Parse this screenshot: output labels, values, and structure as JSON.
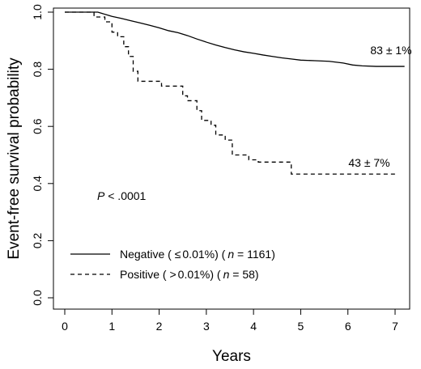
{
  "chart_data": {
    "type": "line",
    "title": "",
    "xlabel": "Years",
    "ylabel": "Event-free survival probability",
    "xlim": [
      0,
      7.3
    ],
    "ylim": [
      0,
      1.0
    ],
    "x_ticks": [
      0,
      1,
      2,
      3,
      4,
      5,
      6,
      7
    ],
    "y_ticks": [
      0.0,
      0.2,
      0.4,
      0.6,
      0.8,
      1.0
    ],
    "x_tick_labels": [
      "0",
      "1",
      "2",
      "3",
      "4",
      "5",
      "6",
      "7"
    ],
    "y_tick_labels": [
      "0.0",
      "0.2",
      "0.4",
      "0.6",
      "0.8",
      "1.0"
    ],
    "grid": false,
    "legend_position": "bottom-left",
    "series": [
      {
        "name": "Negative",
        "legend": {
          "prefix": "Negative ( ",
          "le": "≤",
          "threshold": "0.01%) (",
          "n_label": "n",
          "equals": " = ",
          "n": "1161",
          "suffix": ")"
        },
        "line_style": "solid",
        "end_label": "83 ± 1%",
        "points": [
          [
            0,
            1.0
          ],
          [
            0.7,
            1.0
          ],
          [
            0.8,
            0.995
          ],
          [
            0.9,
            0.99
          ],
          [
            1.0,
            0.985
          ],
          [
            1.2,
            0.978
          ],
          [
            1.4,
            0.97
          ],
          [
            1.6,
            0.962
          ],
          [
            1.8,
            0.954
          ],
          [
            2.0,
            0.945
          ],
          [
            2.2,
            0.935
          ],
          [
            2.4,
            0.928
          ],
          [
            2.6,
            0.918
          ],
          [
            2.8,
            0.906
          ],
          [
            3.0,
            0.895
          ],
          [
            3.2,
            0.885
          ],
          [
            3.4,
            0.876
          ],
          [
            3.6,
            0.868
          ],
          [
            3.8,
            0.861
          ],
          [
            4.0,
            0.856
          ],
          [
            4.2,
            0.85
          ],
          [
            4.4,
            0.845
          ],
          [
            4.6,
            0.84
          ],
          [
            4.8,
            0.836
          ],
          [
            5.0,
            0.832
          ],
          [
            5.3,
            0.83
          ],
          [
            5.6,
            0.828
          ],
          [
            5.9,
            0.822
          ],
          [
            6.1,
            0.815
          ],
          [
            6.3,
            0.812
          ],
          [
            6.6,
            0.81
          ],
          [
            7.2,
            0.81
          ]
        ]
      },
      {
        "name": "Positive",
        "legend": {
          "prefix": "Positive ( ",
          "gt": ">",
          "threshold": "0.01%) (",
          "n_label": "n",
          "equals": " = ",
          "n": "58",
          "suffix": ")"
        },
        "line_style": "dashed",
        "end_label": "43 ± 7%",
        "points": [
          [
            0,
            1.0
          ],
          [
            0.62,
            1.0
          ],
          [
            0.62,
            0.983
          ],
          [
            0.85,
            0.983
          ],
          [
            0.85,
            0.966
          ],
          [
            1.0,
            0.966
          ],
          [
            1.0,
            0.93
          ],
          [
            1.12,
            0.93
          ],
          [
            1.12,
            0.914
          ],
          [
            1.25,
            0.914
          ],
          [
            1.25,
            0.879
          ],
          [
            1.35,
            0.879
          ],
          [
            1.35,
            0.845
          ],
          [
            1.45,
            0.845
          ],
          [
            1.45,
            0.793
          ],
          [
            1.55,
            0.793
          ],
          [
            1.55,
            0.758
          ],
          [
            2.05,
            0.758
          ],
          [
            2.05,
            0.741
          ],
          [
            2.5,
            0.741
          ],
          [
            2.5,
            0.707
          ],
          [
            2.6,
            0.707
          ],
          [
            2.6,
            0.69
          ],
          [
            2.8,
            0.69
          ],
          [
            2.8,
            0.655
          ],
          [
            2.9,
            0.655
          ],
          [
            2.9,
            0.621
          ],
          [
            3.1,
            0.621
          ],
          [
            3.1,
            0.604
          ],
          [
            3.2,
            0.604
          ],
          [
            3.2,
            0.57
          ],
          [
            3.4,
            0.57
          ],
          [
            3.4,
            0.552
          ],
          [
            3.55,
            0.552
          ],
          [
            3.55,
            0.5
          ],
          [
            3.8,
            0.5
          ],
          [
            3.8,
            0.5
          ],
          [
            3.9,
            0.5
          ],
          [
            3.9,
            0.483
          ],
          [
            4.1,
            0.483
          ],
          [
            4.1,
            0.475
          ],
          [
            4.8,
            0.475
          ],
          [
            4.8,
            0.433
          ],
          [
            7.0,
            0.433
          ]
        ]
      }
    ],
    "annotations": [
      {
        "italic": "P",
        "text": " <  .0001"
      }
    ]
  }
}
